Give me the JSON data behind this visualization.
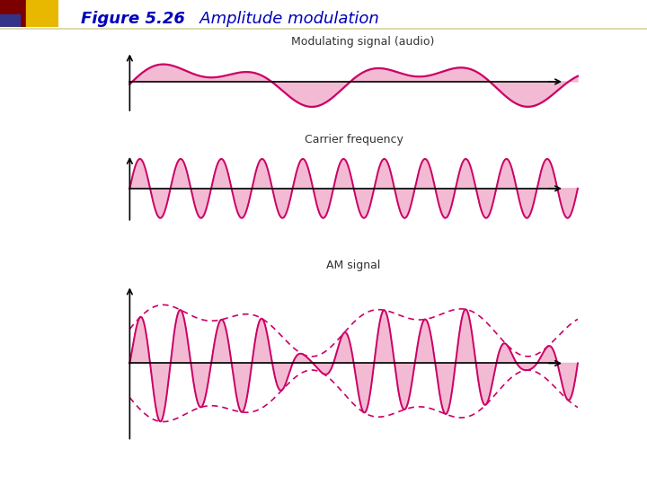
{
  "title_bold": "Figure 5.26",
  "title_italic": "   Amplitude modulation",
  "title_color": "#0000BB",
  "title_fontsize": 13,
  "bg_color": "#FFFFFF",
  "signal_color": "#CC0066",
  "fill_color": "#F0B0CC",
  "fill_alpha": 0.85,
  "label1": "Modulating signal (audio)",
  "label2": "Carrier frequency",
  "label3": "AM signal",
  "label_fontsize": 9,
  "label_color": "#333333",
  "dec_dark_red": "#7B0000",
  "dec_gold": "#E8B800",
  "dec_blue": "#333388",
  "header_line_color": "#D4D4A0"
}
